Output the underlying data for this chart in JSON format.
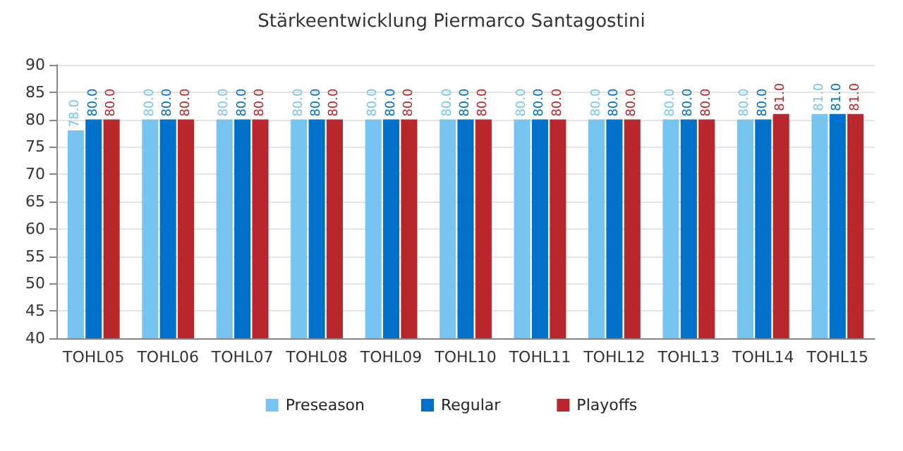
{
  "chart_data": {
    "type": "bar",
    "title": "Stärkeentwicklung Piermarco Santagostini",
    "categories": [
      "TOHL05",
      "TOHL06",
      "TOHL07",
      "TOHL08",
      "TOHL09",
      "TOHL10",
      "TOHL11",
      "TOHL12",
      "TOHL13",
      "TOHL14",
      "TOHL15"
    ],
    "series": [
      {
        "name": "Preseason",
        "color": "#77c4f0",
        "values": [
          78,
          80,
          80,
          80,
          80,
          80,
          80,
          80,
          80,
          80,
          81
        ],
        "value_labels": [
          "78.0",
          "80.0",
          "80.0",
          "80.0",
          "80.0",
          "80.0",
          "80.0",
          "80.0",
          "80.0",
          "80.0",
          "81.0"
        ]
      },
      {
        "name": "Regular",
        "color": "#0070c8",
        "values": [
          80,
          80,
          80,
          80,
          80,
          80,
          80,
          80,
          80,
          80,
          81
        ],
        "value_labels": [
          "80.0",
          "80.0",
          "80.0",
          "80.0",
          "80.0",
          "80.0",
          "80.0",
          "80.0",
          "80.0",
          "80.0",
          "81.0"
        ]
      },
      {
        "name": "Playoffs",
        "color": "#b8272b",
        "values": [
          80,
          80,
          80,
          80,
          80,
          80,
          80,
          80,
          80,
          81,
          81
        ],
        "value_labels": [
          "80.0",
          "80.0",
          "80.0",
          "80.0",
          "80.0",
          "80.0",
          "80.0",
          "80.0",
          "80.0",
          "81.0",
          "81.0"
        ]
      }
    ],
    "ylim": [
      40,
      90
    ],
    "yticks": [
      40,
      45,
      50,
      55,
      60,
      65,
      70,
      75,
      80,
      85,
      90
    ],
    "grid": "y",
    "legend": "bottom"
  }
}
